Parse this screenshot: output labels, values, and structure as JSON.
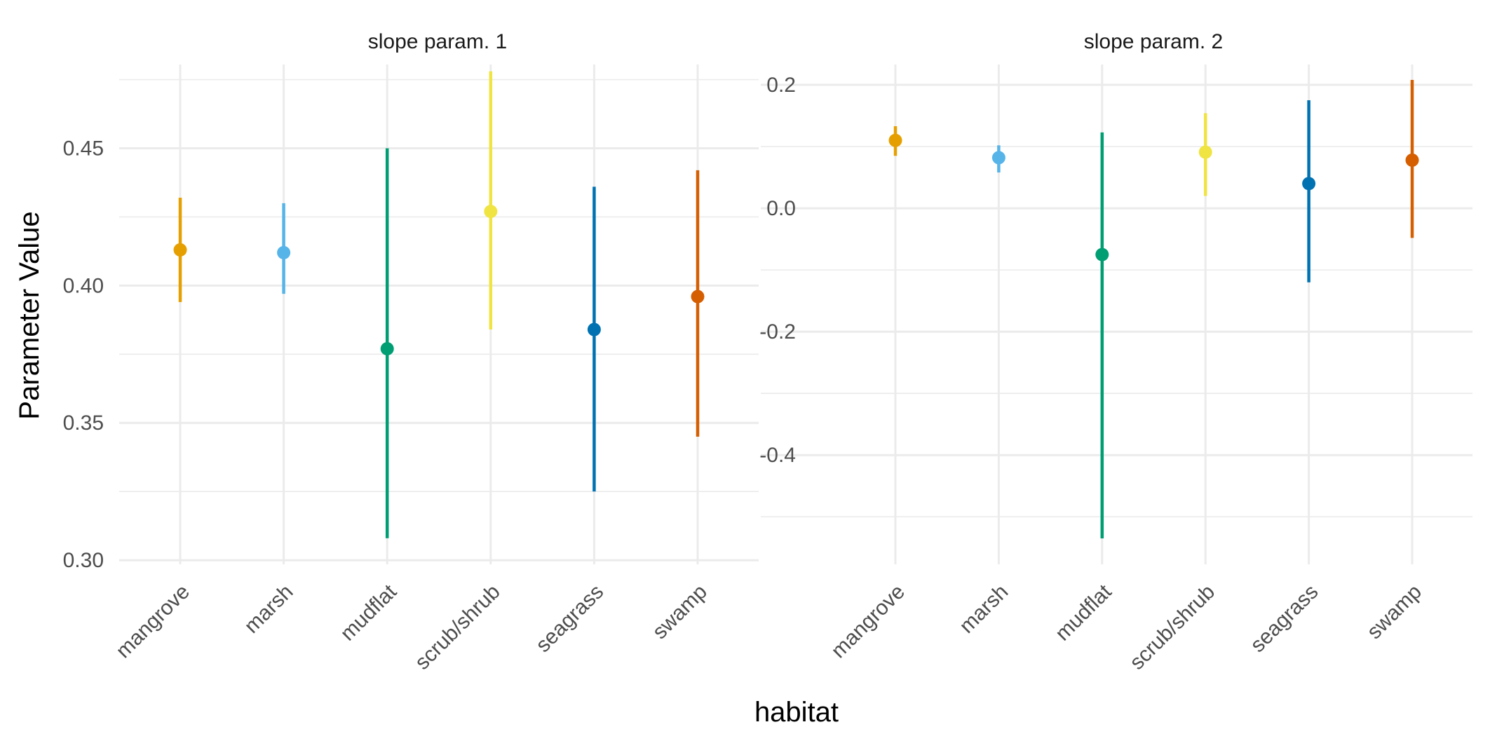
{
  "chart_data": [
    {
      "type": "scatter",
      "title": "slope param. 1",
      "categories": [
        "mangrove",
        "marsh",
        "mudflat",
        "scrub/shrub",
        "seagrass",
        "swamp"
      ],
      "values": [
        0.413,
        0.412,
        0.377,
        0.427,
        0.384,
        0.396
      ],
      "lower": [
        0.394,
        0.397,
        0.308,
        0.384,
        0.325,
        0.345
      ],
      "upper": [
        0.432,
        0.43,
        0.45,
        0.478,
        0.436,
        0.442
      ],
      "colors": [
        "#E69F00",
        "#56B4E9",
        "#009E73",
        "#F0E442",
        "#0072B2",
        "#D55E00"
      ],
      "yticks": [
        "0.30",
        "0.35",
        "0.40",
        "0.45"
      ],
      "ytick_values": [
        0.3,
        0.35,
        0.4,
        0.45
      ],
      "ylim": [
        0.2985,
        0.4805
      ],
      "grid": true
    },
    {
      "type": "scatter",
      "title": "slope param. 2",
      "categories": [
        "mangrove",
        "marsh",
        "mudflat",
        "scrub/shrub",
        "seagrass",
        "swamp"
      ],
      "values": [
        0.11,
        0.082,
        -0.075,
        0.091,
        0.04,
        0.078
      ],
      "lower": [
        0.085,
        0.058,
        -0.535,
        0.02,
        -0.12,
        -0.048
      ],
      "upper": [
        0.133,
        0.102,
        0.123,
        0.154,
        0.175,
        0.208
      ],
      "colors": [
        "#E69F00",
        "#56B4E9",
        "#009E73",
        "#F0E442",
        "#0072B2",
        "#D55E00"
      ],
      "yticks": [
        "0.2",
        "0.0",
        "-0.2",
        "-0.4"
      ],
      "ytick_values": [
        0.2,
        0.0,
        -0.2,
        -0.4
      ],
      "ylim": [
        -0.577,
        0.233
      ],
      "grid": true
    }
  ],
  "axes": {
    "ylabel": "Parameter Value",
    "xlabel": "habitat"
  }
}
